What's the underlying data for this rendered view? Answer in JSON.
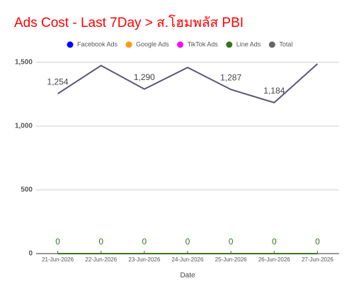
{
  "chart_data": {
    "type": "line",
    "title": "Ads Cost - Last 7Day > ส.โฮมพลัส PBI",
    "x_label": "Date",
    "categories": [
      "21-Jun-2026",
      "22-Jun-2026",
      "23-Jun-2026",
      "24-Jun-2026",
      "25-Jun-2026",
      "26-Jun-2026",
      "27-Jun-2026"
    ],
    "series": [
      {
        "name": "Facebook Ads",
        "color": "#0000ff",
        "values": [
          null,
          null,
          null,
          null,
          null,
          null,
          null
        ]
      },
      {
        "name": "Google Ads",
        "color": "#ff9900",
        "values": [
          null,
          null,
          null,
          null,
          null,
          null,
          null
        ]
      },
      {
        "name": "TikTok Ads",
        "color": "#ff00ff",
        "values": [
          null,
          null,
          null,
          null,
          null,
          null,
          null
        ]
      },
      {
        "name": "Line Ads",
        "color": "#38761d",
        "values": [
          0,
          0,
          0,
          0,
          0,
          0,
          0
        ]
      },
      {
        "name": "Total",
        "color": "#5a5577",
        "values": [
          1254,
          1475,
          1290,
          1460,
          1287,
          1184,
          1488
        ],
        "value_labels": [
          "1,254",
          null,
          "1,290",
          null,
          "1,287",
          "1,184",
          null
        ]
      }
    ],
    "ylim": [
      0,
      1500
    ],
    "yticks": [
      {
        "value": 0,
        "label": "0"
      },
      {
        "value": 500,
        "label": "500"
      },
      {
        "value": 1000,
        "label": "1,000"
      },
      {
        "value": 1500,
        "label": "1,500"
      }
    ],
    "grid": true,
    "legend": "top"
  }
}
